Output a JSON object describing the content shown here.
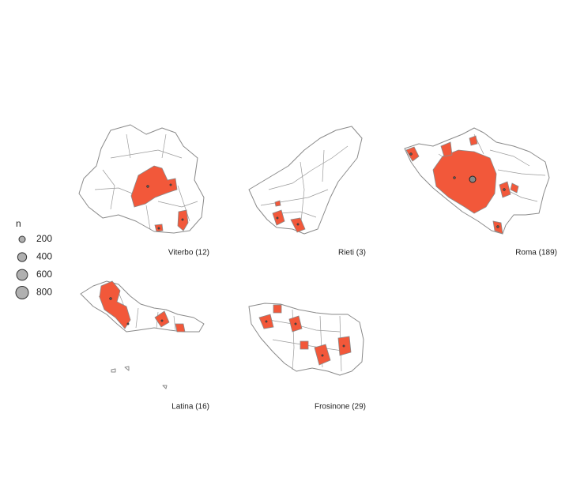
{
  "legend": {
    "title": "n",
    "sizes": [
      200,
      400,
      600,
      800
    ]
  },
  "panels": [
    {
      "label": "Viterbo (12)"
    },
    {
      "label": "Rieti (3)"
    },
    {
      "label": "Roma (189)"
    },
    {
      "label": "Latina (16)"
    },
    {
      "label": "Frosinone (29)"
    }
  ]
}
